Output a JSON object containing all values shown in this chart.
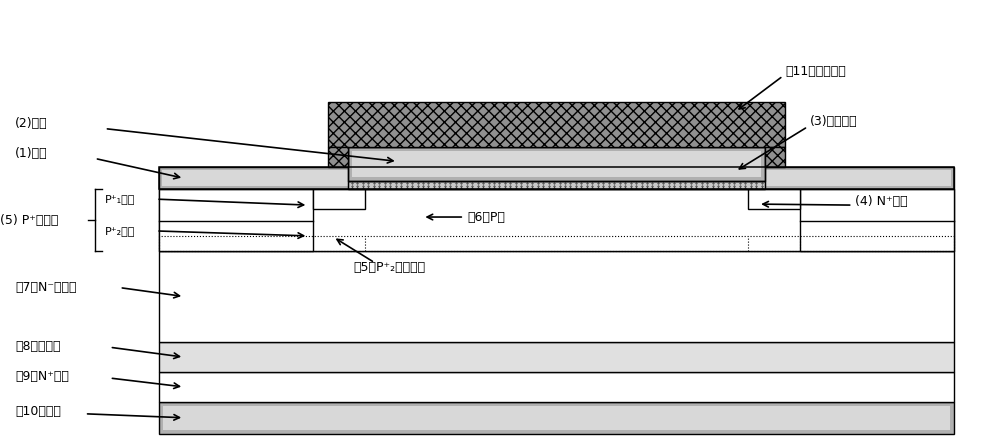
{
  "fig_width": 10.0,
  "fig_height": 4.43,
  "bg_color": "#ffffff",
  "colors": {
    "source_metal_outer": "#b0b0b0",
    "source_metal_inner": "#d8d8d8",
    "gate_poly_outer": "#b0b0b0",
    "gate_poly_inner": "#d8d8d8",
    "gate_oxide": "#c8c8c8",
    "isolation_fill": "#909090",
    "buffer_fill": "#e0e0e0",
    "drain_outer": "#b0b0b0",
    "drain_inner": "#d8d8d8",
    "white": "#ffffff",
    "black": "#000000"
  },
  "labels": {
    "1": "(1)源极",
    "2": "(2)栅极",
    "3": "(3)栅氧化层",
    "4": "(4) N⁺源区",
    "5_contact": "(5) P⁺接触区",
    "5_p1": "P⁺₁区域",
    "5_p2": "P⁺₂区域",
    "5_diffusion": "（5）P⁺₂扩散区域",
    "6": "（6）P阱",
    "7": "（7）N⁻漂移层",
    "8": "（8）缓冲层",
    "9": "（9）N⁺衬底",
    "10": "（10）漏极",
    "11": "（11）隔离介质"
  },
  "font_size": 9
}
